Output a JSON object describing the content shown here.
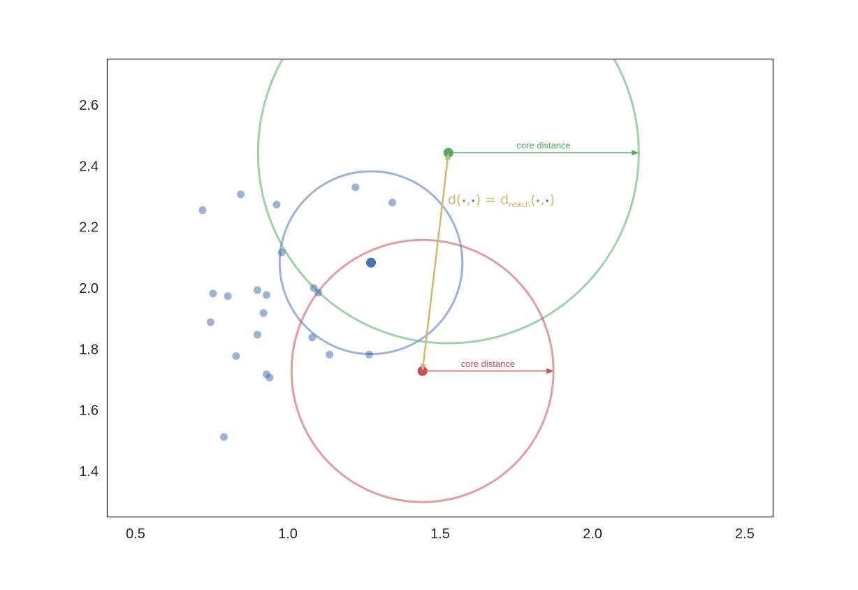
{
  "chart_data": {
    "type": "scatter",
    "xlim": [
      0.407,
      2.593
    ],
    "ylim": [
      1.25,
      2.75
    ],
    "x_ticks": [
      "0.5",
      "1.0",
      "1.5",
      "2.0",
      "2.5"
    ],
    "y_ticks": [
      "1.4",
      "1.6",
      "1.8",
      "2.0",
      "2.2",
      "2.4",
      "2.6"
    ],
    "grid": false,
    "points": [
      [
        0.72,
        2.255
      ],
      [
        0.845,
        2.307
      ],
      [
        0.963,
        2.273
      ],
      [
        1.222,
        2.33
      ],
      [
        1.343,
        2.28
      ],
      [
        0.98,
        2.117
      ],
      [
        0.754,
        1.982
      ],
      [
        0.803,
        1.973
      ],
      [
        0.9,
        1.993
      ],
      [
        0.93,
        1.977
      ],
      [
        1.085,
        2.0
      ],
      [
        1.1,
        1.985
      ],
      [
        0.92,
        1.918
      ],
      [
        0.746,
        1.888
      ],
      [
        0.9,
        1.847
      ],
      [
        1.08,
        1.838
      ],
      [
        1.137,
        1.782
      ],
      [
        1.267,
        1.782
      ],
      [
        0.83,
        1.777
      ],
      [
        0.93,
        1.717
      ],
      [
        0.94,
        1.707
      ],
      [
        0.79,
        1.512
      ]
    ],
    "center_point": [
      1.273,
      2.083
    ],
    "green_point": [
      1.527,
      2.443
    ],
    "red_point": [
      1.442,
      1.728
    ],
    "circles": [
      {
        "name": "blue",
        "center": [
          1.273,
          2.083
        ],
        "radius": 0.3
      },
      {
        "name": "green",
        "center": [
          1.527,
          2.443
        ],
        "radius": 0.625
      },
      {
        "name": "red",
        "center": [
          1.442,
          1.728
        ],
        "radius": 0.43
      }
    ],
    "core_distance_arrows": [
      {
        "from": [
          1.527,
          2.443
        ],
        "to": [
          2.152,
          2.443
        ],
        "label": "core distance",
        "color": "#55a868"
      },
      {
        "from": [
          1.442,
          1.728
        ],
        "to": [
          1.872,
          1.728
        ],
        "label": "core distance",
        "color": "#c44e52"
      }
    ],
    "reach_arrow": {
      "from": [
        1.442,
        1.728
      ],
      "to": [
        1.527,
        2.443
      ]
    },
    "formula": {
      "d": "d(",
      "sep": ",",
      "close": ")",
      "equals": " = d",
      "sub": "reach",
      "open": "(",
      "dot": "•",
      "close2": ")"
    },
    "colors": {
      "points": "#4c72b0",
      "blue_circle": "#4c72b0",
      "green": "#55a868",
      "red": "#c44e52",
      "gold": "#ccb974"
    }
  }
}
